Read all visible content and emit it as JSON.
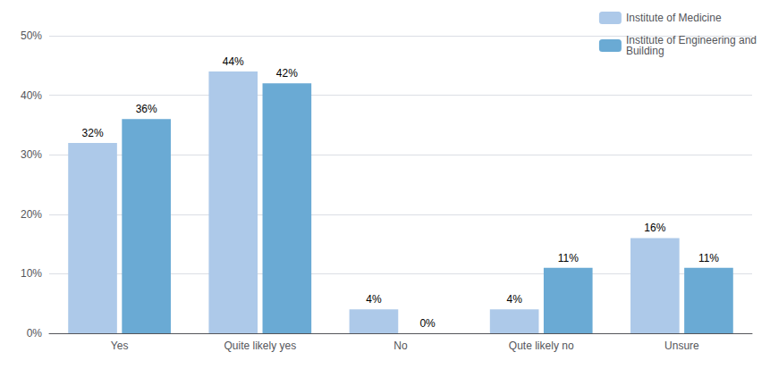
{
  "chart_data": {
    "type": "bar",
    "categories": [
      "Yes",
      "Quite likely yes",
      "No",
      "Qute likely no",
      "Unsure"
    ],
    "series": [
      {
        "name": "Institute of Medicine",
        "color": "#adc9e9",
        "values": [
          32,
          44,
          4,
          4,
          16
        ],
        "value_labels": [
          "32%",
          "44%",
          "4%",
          "4%",
          "16%"
        ]
      },
      {
        "name": "Institute of Engineering and\nBuilding",
        "color": "#6aaad4",
        "values": [
          36,
          42,
          0,
          11,
          11
        ],
        "value_labels": [
          "36%",
          "42%",
          "0%",
          "11%",
          "11%"
        ]
      }
    ],
    "ylim": [
      0,
      50
    ],
    "yticks": [
      {
        "value": 0,
        "label": "0%"
      },
      {
        "value": 10,
        "label": "10%"
      },
      {
        "value": 20,
        "label": "20%"
      },
      {
        "value": 30,
        "label": "30%"
      },
      {
        "value": 40,
        "label": "40%"
      },
      {
        "value": 50,
        "label": "50%"
      }
    ],
    "grid": true,
    "legend": "upper right",
    "data_labels": true
  }
}
